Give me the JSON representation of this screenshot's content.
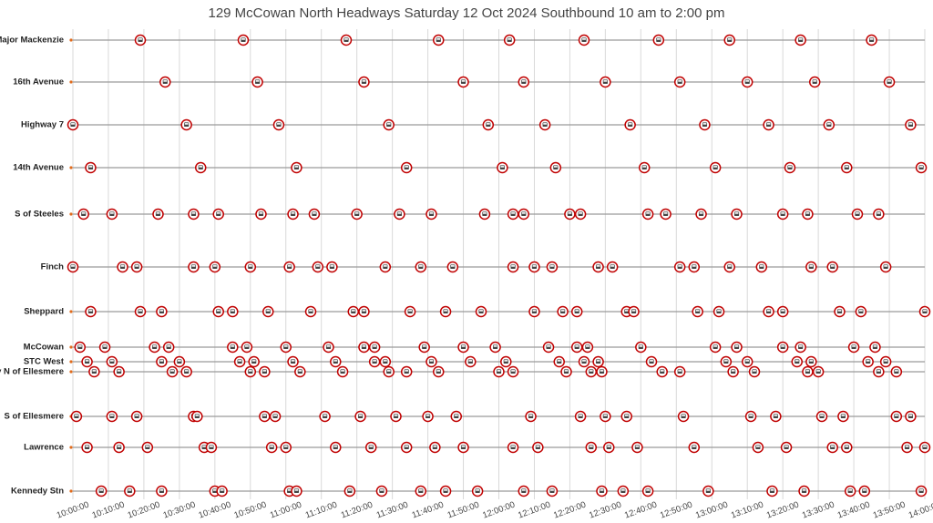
{
  "chart_data": {
    "type": "scatter",
    "title": "129 McCowan North Headways Saturday 12 Oct 2024 Southbound 10 am to 2:00 pm",
    "color": "#c00000",
    "grid": true,
    "xlim": [
      "10:00:00",
      "14:00:00"
    ],
    "xticks": [
      "10:00:00",
      "10:10:00",
      "10:20:00",
      "10:30:00",
      "10:40:00",
      "10:50:00",
      "11:00:00",
      "11:10:00",
      "11:20:00",
      "11:30:00",
      "11:40:00",
      "11:50:00",
      "12:00:00",
      "12:10:00",
      "12:20:00",
      "12:30:00",
      "12:40:00",
      "12:50:00",
      "13:00:00",
      "13:10:00",
      "13:20:00",
      "13:30:00",
      "13:40:00",
      "13:50:00",
      "14:00:00"
    ],
    "series": [
      {
        "name": "S of Major Mackenzie",
        "x": [
          "10:19",
          "10:48",
          "11:17",
          "11:43",
          "12:03",
          "12:24",
          "12:45",
          "13:05",
          "13:25",
          "13:45"
        ]
      },
      {
        "name": "16th Avenue",
        "x": [
          "10:26",
          "10:52",
          "11:22",
          "11:50",
          "12:07",
          "12:30",
          "12:51",
          "13:10",
          "13:29",
          "13:50"
        ]
      },
      {
        "name": "Highway 7",
        "x": [
          "10:00",
          "10:32",
          "10:58",
          "11:29",
          "11:57",
          "12:13",
          "12:37",
          "12:58",
          "13:16",
          "13:33",
          "13:56"
        ]
      },
      {
        "name": "14th Avenue",
        "x": [
          "10:05",
          "10:36",
          "11:03",
          "11:34",
          "12:01",
          "12:16",
          "12:41",
          "13:01",
          "13:22",
          "13:38",
          "13:59"
        ]
      },
      {
        "name": "S of Steeles",
        "x": [
          "10:03",
          "10:11",
          "10:24",
          "10:34",
          "10:41",
          "10:53",
          "11:02",
          "11:08",
          "11:20",
          "11:32",
          "11:41",
          "11:56",
          "12:04",
          "12:07",
          "12:20",
          "12:23",
          "12:42",
          "12:47",
          "12:57",
          "13:07",
          "13:20",
          "13:27",
          "13:41",
          "13:47"
        ]
      },
      {
        "name": "Finch",
        "x": [
          "10:00",
          "10:14",
          "10:18",
          "10:34",
          "10:40",
          "10:50",
          "11:01",
          "11:09",
          "11:13",
          "11:28",
          "11:38",
          "11:47",
          "12:04",
          "12:10",
          "12:15",
          "12:28",
          "12:32",
          "12:51",
          "12:55",
          "13:05",
          "13:14",
          "13:28",
          "13:34",
          "13:49"
        ]
      },
      {
        "name": "Sheppard",
        "x": [
          "10:05",
          "10:19",
          "10:25",
          "10:41",
          "10:45",
          "10:55",
          "11:07",
          "11:19",
          "11:22",
          "11:35",
          "11:45",
          "11:55",
          "12:10",
          "12:18",
          "12:22",
          "12:36",
          "12:38",
          "12:56",
          "13:02",
          "13:16",
          "13:20",
          "13:36",
          "13:42",
          "14:00"
        ]
      },
      {
        "name": "McCowan",
        "x": [
          "10:02",
          "10:09",
          "10:23",
          "10:27",
          "10:45",
          "10:49",
          "11:00",
          "11:12",
          "11:22",
          "11:25",
          "11:39",
          "11:50",
          "11:59",
          "12:14",
          "12:22",
          "12:25",
          "12:40",
          "13:01",
          "13:07",
          "13:20",
          "13:25",
          "13:40",
          "13:46"
        ]
      },
      {
        "name": "STC West",
        "x": [
          "10:04",
          "10:11",
          "10:25",
          "10:30",
          "10:47",
          "10:51",
          "11:02",
          "11:14",
          "11:25",
          "11:28",
          "11:41",
          "11:52",
          "12:02",
          "12:17",
          "12:24",
          "12:28",
          "12:43",
          "13:04",
          "13:10",
          "13:24",
          "13:28",
          "13:44",
          "13:49"
        ]
      },
      {
        "name": "Brimley N of Ellesmere",
        "x": [
          "10:06",
          "10:13",
          "10:28",
          "10:32",
          "10:50",
          "10:54",
          "11:04",
          "11:16",
          "11:29",
          "11:34",
          "11:43",
          "12:00",
          "12:04",
          "12:19",
          "12:26",
          "12:29",
          "12:46",
          "12:51",
          "13:06",
          "13:12",
          "13:27",
          "13:30",
          "13:47",
          "13:52"
        ]
      },
      {
        "name": "S of Ellesmere",
        "x": [
          "10:01",
          "10:11",
          "10:18",
          "10:34",
          "10:35",
          "10:54",
          "10:57",
          "11:11",
          "11:21",
          "11:31",
          "11:40",
          "11:48",
          "12:09",
          "12:23",
          "12:30",
          "12:36",
          "12:52",
          "13:11",
          "13:18",
          "13:31",
          "13:37",
          "13:52",
          "13:56"
        ]
      },
      {
        "name": "Lawrence",
        "x": [
          "10:04",
          "10:13",
          "10:21",
          "10:37",
          "10:39",
          "10:56",
          "11:00",
          "11:14",
          "11:24",
          "11:34",
          "11:42",
          "11:50",
          "12:04",
          "12:11",
          "12:26",
          "12:31",
          "12:39",
          "12:55",
          "13:13",
          "13:21",
          "13:34",
          "13:38",
          "13:55",
          "14:00"
        ]
      },
      {
        "name": "Kennedy Stn",
        "x": [
          "10:08",
          "10:16",
          "10:25",
          "10:40",
          "10:42",
          "11:01",
          "11:03",
          "11:18",
          "11:27",
          "11:38",
          "11:45",
          "11:54",
          "12:07",
          "12:15",
          "12:29",
          "12:35",
          "12:42",
          "12:59",
          "13:17",
          "13:26",
          "13:39",
          "13:43",
          "13:59"
        ]
      }
    ]
  }
}
